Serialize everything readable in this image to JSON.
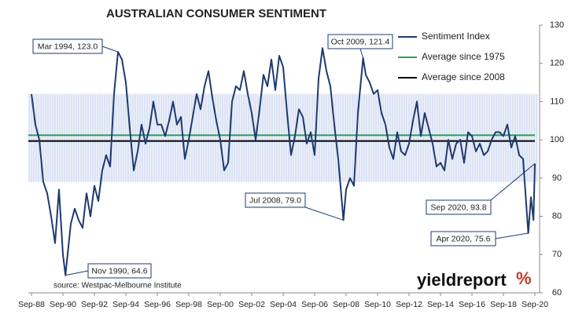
{
  "chart_data": {
    "type": "line",
    "title": "AUSTRALIAN CONSUMER SENTIMENT",
    "source": "source: Westpac-Melbourne Institute",
    "logo": "yieldreport",
    "logo_mark": "%",
    "x": [
      1988.67,
      1988.92,
      1989.17,
      1989.42,
      1989.67,
      1989.92,
      1990.17,
      1990.42,
      1990.67,
      1990.83,
      1991.17,
      1991.42,
      1991.67,
      1991.92,
      1992.17,
      1992.42,
      1992.67,
      1992.92,
      1993.17,
      1993.42,
      1993.67,
      1993.92,
      1994.17,
      1994.42,
      1994.67,
      1994.92,
      1995.17,
      1995.42,
      1995.67,
      1995.92,
      1996.17,
      1996.42,
      1996.67,
      1996.92,
      1997.17,
      1997.42,
      1997.67,
      1997.92,
      1998.17,
      1998.42,
      1998.67,
      1998.92,
      1999.17,
      1999.42,
      1999.67,
      1999.92,
      2000.17,
      2000.42,
      2000.67,
      2000.92,
      2001.17,
      2001.42,
      2001.67,
      2001.92,
      2002.17,
      2002.42,
      2002.67,
      2002.92,
      2003.17,
      2003.42,
      2003.67,
      2003.92,
      2004.17,
      2004.42,
      2004.67,
      2004.92,
      2005.17,
      2005.42,
      2005.67,
      2005.92,
      2006.17,
      2006.42,
      2006.67,
      2006.92,
      2007.17,
      2007.42,
      2007.67,
      2007.92,
      2008.17,
      2008.5,
      2008.67,
      2008.92,
      2009.17,
      2009.42,
      2009.75,
      2009.92,
      2010.17,
      2010.42,
      2010.67,
      2010.92,
      2011.17,
      2011.42,
      2011.67,
      2011.92,
      2012.17,
      2012.42,
      2012.67,
      2012.92,
      2013.17,
      2013.42,
      2013.67,
      2013.92,
      2014.17,
      2014.42,
      2014.67,
      2014.92,
      2015.17,
      2015.42,
      2015.67,
      2015.92,
      2016.17,
      2016.42,
      2016.67,
      2016.92,
      2017.17,
      2017.42,
      2017.67,
      2017.92,
      2018.17,
      2018.42,
      2018.67,
      2018.92,
      2019.17,
      2019.42,
      2019.67,
      2019.92,
      2020.25,
      2020.42,
      2020.58,
      2020.67
    ],
    "series": [
      {
        "name": "Sentiment Index",
        "color": "#1f3a6e",
        "values": [
          112,
          104,
          100,
          89,
          86,
          80,
          73,
          87,
          70,
          64.6,
          78,
          82,
          79,
          77,
          86,
          80,
          88,
          84,
          92,
          96,
          93,
          112,
          123.0,
          121,
          115,
          103,
          92,
          97,
          104,
          99,
          103,
          110,
          104,
          104,
          101,
          105,
          110,
          104,
          106,
          95,
          100,
          106,
          112,
          108,
          114,
          118,
          111,
          105,
          100,
          92,
          94,
          110,
          114,
          113,
          118,
          112,
          107,
          100,
          108,
          117,
          114,
          121,
          113,
          122,
          119,
          107,
          96,
          101,
          108,
          106,
          99,
          102,
          96,
          116,
          124,
          118,
          114,
          104,
          95,
          79.0,
          87,
          90,
          88,
          107,
          121.4,
          117,
          115,
          112,
          113,
          107,
          104,
          98,
          95,
          102,
          97,
          96,
          99,
          105,
          110,
          101,
          107,
          103,
          99,
          93,
          94,
          92,
          100,
          95,
          99,
          100,
          94,
          102,
          101,
          97,
          99,
          96,
          97,
          100,
          102,
          102,
          101,
          104,
          98,
          101,
          96,
          95,
          75.6,
          85,
          79,
          93.8
        ]
      }
    ],
    "reference_lines": [
      {
        "name": "Average since 1975",
        "color": "#2ca05a",
        "value": 101.2
      },
      {
        "name": "Average since 2008",
        "color": "#000000",
        "value": 99.7
      }
    ],
    "band": [
      89,
      112
    ],
    "annotations": [
      "Mar 1994, 123.0",
      "Nov 1990, 64.6",
      "Jul 2008, 79.0",
      "Oct 2009, 121.4",
      "Apr 2020, 75.6",
      "Sep 2020, 93.8"
    ],
    "xlim": [
      1988.67,
      2020.67
    ],
    "xticks": [
      {
        "value": 1988.67,
        "label": "Sep-88"
      },
      {
        "value": 1990.67,
        "label": "Sep-90"
      },
      {
        "value": 1992.67,
        "label": "Sep-92"
      },
      {
        "value": 1994.67,
        "label": "Sep-94"
      },
      {
        "value": 1996.67,
        "label": "Sep-96"
      },
      {
        "value": 1998.67,
        "label": "Sep-98"
      },
      {
        "value": 2000.67,
        "label": "Sep-00"
      },
      {
        "value": 2002.67,
        "label": "Sep-02"
      },
      {
        "value": 2004.67,
        "label": "Sep-04"
      },
      {
        "value": 2006.67,
        "label": "Sep-06"
      },
      {
        "value": 2008.67,
        "label": "Sep-08"
      },
      {
        "value": 2010.67,
        "label": "Sep-10"
      },
      {
        "value": 2012.67,
        "label": "Sep-12"
      },
      {
        "value": 2014.67,
        "label": "Sep-14"
      },
      {
        "value": 2016.67,
        "label": "Sep-16"
      },
      {
        "value": 2018.67,
        "label": "Sep-18"
      },
      {
        "value": 2020.67,
        "label": "Sep-20"
      }
    ],
    "ylim": [
      60,
      130
    ],
    "yticks": [
      60,
      70,
      80,
      90,
      100,
      110,
      120,
      130
    ],
    "legend": "top-right"
  }
}
